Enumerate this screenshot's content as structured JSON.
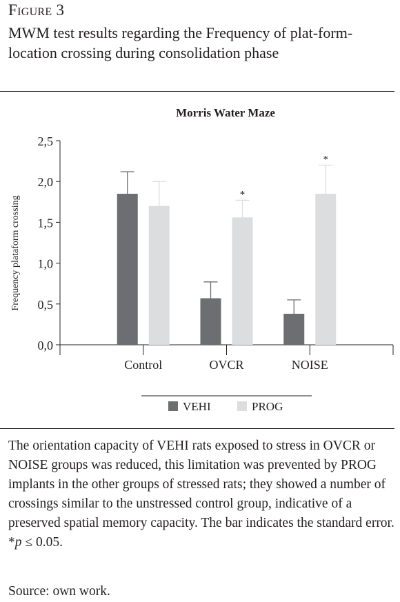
{
  "figure": {
    "label": "Figure 3",
    "title": "MWM test results regarding the Frequency of plat-form-location crossing during consolidation phase",
    "caption_text": "The orientation capacity of VEHI rats exposed to stress in OVCR or NOISE groups was reduced, this limitation was prevented by PROG implants in the other groups of stressed rats; they showed a number of crossings similar to the unstressed control group, indicative of a preserved spatial memory capacity. The bar indicates the standard error. *",
    "caption_stat": "p",
    "caption_tail": " ≤ 0.05.",
    "source": "Source: own work."
  },
  "chart_data": {
    "type": "bar",
    "title": "Morris Water Maze",
    "xlabel": "",
    "ylabel": "Frequency plataform crossing",
    "ylim": [
      0,
      2.5
    ],
    "yticks": [
      "0,0",
      "0,5",
      "1,0",
      "1,5",
      "2,0",
      "2,5"
    ],
    "categories": [
      "Control",
      "OVCR",
      "NOISE"
    ],
    "series": [
      {
        "name": "VEHI",
        "color": "#6d6e71",
        "values": [
          1.85,
          0.57,
          0.38
        ],
        "errors": [
          0.27,
          0.2,
          0.17
        ],
        "significance": [
          "",
          "",
          ""
        ]
      },
      {
        "name": "PROG",
        "color": "#dcdddf",
        "values": [
          1.7,
          1.56,
          1.85
        ],
        "errors": [
          0.3,
          0.21,
          0.35
        ],
        "significance": [
          "",
          "*",
          "*"
        ]
      }
    ],
    "legend_position": "bottom",
    "grid": false
  }
}
